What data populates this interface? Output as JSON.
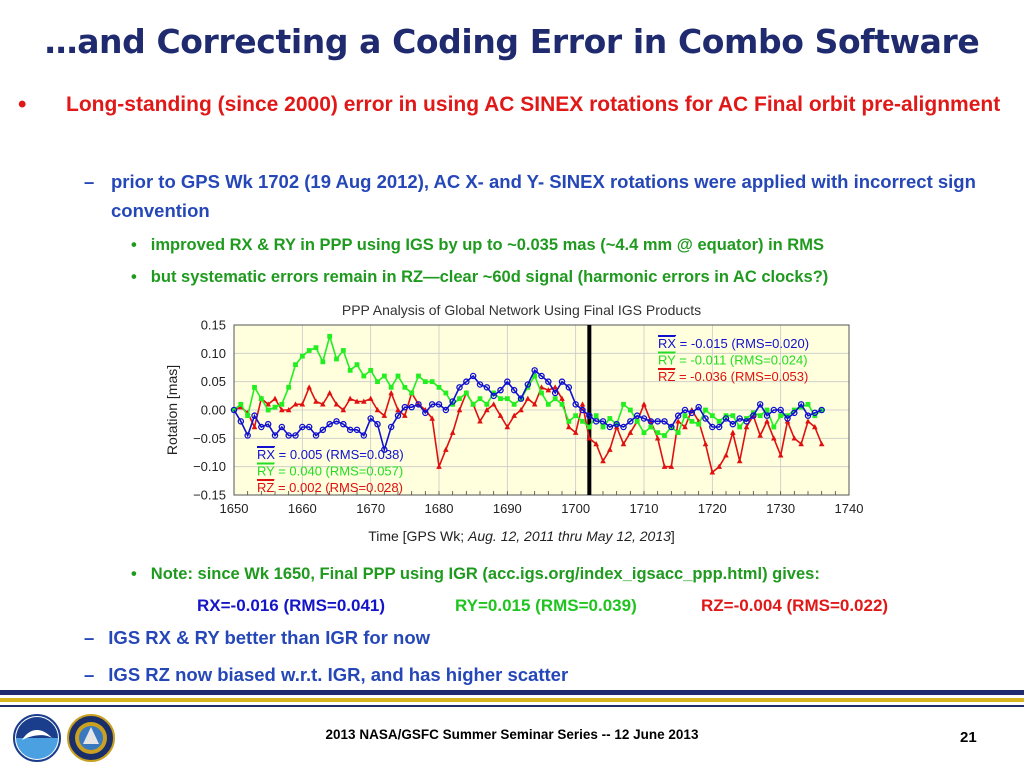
{
  "slide": {
    "title": "…and Correcting a Coding Error in Combo Software",
    "bullet1": "Long-standing (since 2000) error in using AC SINEX rotations for AC Final orbit pre-alignment",
    "sub1": "prior to GPS Wk 1702 (19 Aug 2012), AC X- and Y- SINEX rotations were applied with incorrect sign convention",
    "sub1_points": [
      "improved RX & RY in PPP using IGS by up to ~0.035 mas (~4.4 mm @ equator) in RMS",
      "but systematic errors remain in RZ—clear ~60d signal (harmonic errors in AC clocks?)"
    ],
    "note": "Note: since Wk 1650, Final PPP using IGR (acc.igs.org/index_igsacc_ppp.html) gives:",
    "rms": {
      "rx": "RX=-0.016 (RMS=0.041)",
      "ry": "RY=0.015 (RMS=0.039)",
      "rz": "RZ=-0.004 (RMS=0.022)"
    },
    "sub2": "IGS RX & RY better than IGR for now",
    "sub3": "IGS RZ now biased w.r.t. IGR, and has higher scatter",
    "footer": "2013 NASA/GSFC Summer Seminar Series -- 12 June 2013",
    "page_number": "21",
    "bullet_glyph": "•",
    "dash_glyph": "–"
  },
  "colors": {
    "title": "#1f2b6e",
    "red": "#e01818",
    "blue": "#2547b8",
    "green": "#1f9a1f",
    "chart_blue": "#1010d0",
    "chart_green": "#22ee22",
    "chart_red": "#e01010",
    "plot_bg": "#ffffdd"
  },
  "chart_data": {
    "type": "line",
    "title": "PPP Analysis of Global Network Using Final IGS Products",
    "xlabel_prefix": "Time [GPS Wk; ",
    "xlabel_italic": "Aug. 12, 2011 thru May 12, 2013",
    "xlabel_suffix": "]",
    "ylabel": "Rotation   [mas]",
    "xlim": [
      1650,
      1740
    ],
    "ylim": [
      -0.15,
      0.15
    ],
    "xticks": [
      "1650",
      "1660",
      "1670",
      "1680",
      "1690",
      "1700",
      "1710",
      "1720",
      "1730",
      "1740"
    ],
    "yticks": [
      "0.15",
      "0.10",
      "0.05",
      "0.00",
      "−0.05",
      "−0.10",
      "−0.15"
    ],
    "grid": true,
    "vline_x": 1702,
    "annotations_left": [
      {
        "prefix": "RX",
        "text": " = 0.005 (RMS=0.038)",
        "series": "RX"
      },
      {
        "prefix": "RY",
        "text": " = 0.040 (RMS=0.057)",
        "series": "RY"
      },
      {
        "prefix": "RZ",
        "text": " = 0.002 (RMS=0.028)",
        "series": "RZ"
      }
    ],
    "annotations_right": [
      {
        "prefix": "RX",
        "text": " = -0.015 (RMS=0.020)",
        "series": "RX"
      },
      {
        "prefix": "RY",
        "text": " = -0.011 (RMS=0.024)",
        "series": "RY"
      },
      {
        "prefix": "RZ",
        "text": " = -0.036 (RMS=0.053)",
        "series": "RZ"
      }
    ],
    "x": [
      1650,
      1651,
      1652,
      1653,
      1654,
      1655,
      1656,
      1657,
      1658,
      1659,
      1660,
      1661,
      1662,
      1663,
      1664,
      1665,
      1666,
      1667,
      1668,
      1669,
      1670,
      1671,
      1672,
      1673,
      1674,
      1675,
      1676,
      1677,
      1678,
      1679,
      1680,
      1681,
      1682,
      1683,
      1684,
      1685,
      1686,
      1687,
      1688,
      1689,
      1690,
      1691,
      1692,
      1693,
      1694,
      1695,
      1696,
      1697,
      1698,
      1699,
      1700,
      1701,
      1702,
      1703,
      1704,
      1705,
      1706,
      1707,
      1708,
      1709,
      1710,
      1711,
      1712,
      1713,
      1714,
      1715,
      1716,
      1717,
      1718,
      1719,
      1720,
      1721,
      1722,
      1723,
      1724,
      1725,
      1726,
      1727,
      1728,
      1729,
      1730,
      1731,
      1732,
      1733,
      1734,
      1735,
      1736
    ],
    "series": [
      {
        "name": "RX",
        "color": "#1010d0",
        "marker": "circle",
        "values": [
          0.0,
          -0.02,
          -0.045,
          -0.01,
          -0.03,
          -0.025,
          -0.045,
          -0.03,
          -0.045,
          -0.045,
          -0.03,
          -0.03,
          -0.045,
          -0.035,
          -0.025,
          -0.02,
          -0.025,
          -0.035,
          -0.035,
          -0.045,
          -0.015,
          -0.025,
          -0.07,
          -0.03,
          -0.01,
          0.005,
          0.005,
          0.01,
          -0.005,
          0.01,
          0.01,
          0.0,
          0.015,
          0.04,
          0.05,
          0.06,
          0.045,
          0.04,
          0.025,
          0.035,
          0.05,
          0.035,
          0.02,
          0.045,
          0.07,
          0.06,
          0.05,
          0.03,
          0.05,
          0.04,
          0.01,
          0.0,
          -0.01,
          -0.02,
          -0.02,
          -0.03,
          -0.025,
          -0.03,
          -0.02,
          -0.01,
          -0.015,
          -0.02,
          -0.02,
          -0.02,
          -0.03,
          -0.01,
          0.0,
          -0.005,
          0.005,
          -0.015,
          -0.03,
          -0.03,
          -0.015,
          -0.025,
          -0.015,
          -0.02,
          -0.01,
          0.01,
          -0.01,
          0.0,
          0.0,
          -0.015,
          -0.005,
          0.01,
          -0.01,
          -0.005,
          0.0
        ]
      },
      {
        "name": "RY",
        "color": "#22ee22",
        "marker": "square",
        "values": [
          0.0,
          0.01,
          -0.01,
          0.04,
          0.02,
          0.0,
          0.005,
          0.01,
          0.04,
          0.08,
          0.095,
          0.105,
          0.11,
          0.085,
          0.13,
          0.09,
          0.105,
          0.07,
          0.08,
          0.06,
          0.07,
          0.05,
          0.06,
          0.04,
          0.06,
          0.04,
          0.03,
          0.06,
          0.05,
          0.05,
          0.04,
          0.03,
          0.01,
          0.02,
          0.03,
          0.01,
          0.02,
          0.01,
          0.03,
          0.02,
          0.02,
          0.01,
          0.02,
          0.04,
          0.06,
          0.03,
          0.01,
          0.02,
          0.01,
          -0.02,
          -0.01,
          -0.02,
          -0.03,
          -0.01,
          -0.03,
          -0.015,
          -0.025,
          0.01,
          0.0,
          -0.02,
          -0.04,
          -0.03,
          -0.04,
          -0.045,
          -0.03,
          -0.04,
          -0.01,
          -0.02,
          -0.025,
          0.0,
          -0.01,
          -0.02,
          -0.01,
          -0.01,
          -0.03,
          -0.015,
          -0.005,
          -0.01,
          0.0,
          -0.03,
          -0.01,
          -0.01,
          0.0,
          0.005,
          0.01,
          -0.01,
          0.0
        ]
      },
      {
        "name": "RZ",
        "color": "#e01010",
        "marker": "triangle",
        "values": [
          0.0,
          0.005,
          -0.005,
          -0.03,
          0.02,
          0.01,
          0.02,
          0.0,
          0.0,
          0.01,
          0.01,
          0.04,
          0.015,
          0.01,
          0.03,
          0.01,
          0.0,
          0.02,
          0.015,
          0.015,
          0.02,
          0.0,
          -0.01,
          0.03,
          0.0,
          -0.01,
          0.03,
          0.01,
          0.0,
          -0.015,
          -0.1,
          -0.07,
          -0.04,
          0.0,
          0.03,
          0.01,
          -0.02,
          0.0,
          0.01,
          -0.01,
          -0.03,
          -0.01,
          0.0,
          0.02,
          0.01,
          0.04,
          0.035,
          0.04,
          0.02,
          -0.03,
          -0.04,
          0.01,
          -0.05,
          -0.06,
          -0.09,
          -0.07,
          -0.03,
          -0.06,
          -0.04,
          -0.02,
          0.01,
          -0.02,
          -0.05,
          -0.1,
          -0.1,
          -0.02,
          -0.03,
          0.0,
          -0.02,
          -0.06,
          -0.11,
          -0.1,
          -0.08,
          -0.04,
          -0.09,
          -0.03,
          -0.01,
          -0.045,
          -0.02,
          -0.05,
          -0.08,
          -0.02,
          -0.05,
          -0.06,
          -0.02,
          -0.03,
          -0.06
        ]
      }
    ]
  }
}
